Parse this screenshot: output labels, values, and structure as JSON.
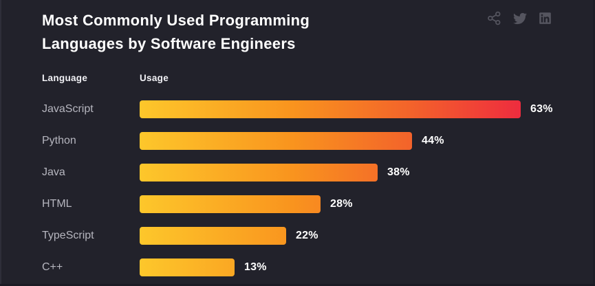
{
  "panel": {
    "title_line1": "Most Commonly Used Programming",
    "title_line2": "Languages by Software Engineers",
    "column_headers": {
      "language": "Language",
      "usage": "Usage"
    },
    "social_icons": [
      "share",
      "twitter",
      "linkedin"
    ],
    "colors": {
      "background": "#22222b",
      "icon": "#55555f",
      "bar_gradient": [
        "#fdc72b",
        "#f9941e",
        "#f3652a",
        "#ee2c3e"
      ]
    }
  },
  "chart_data": {
    "type": "bar",
    "orientation": "horizontal",
    "title": "Most Commonly Used Programming Languages by Software Engineers",
    "categories": [
      "JavaScript",
      "Python",
      "Java",
      "HTML",
      "TypeScript",
      "C++"
    ],
    "values": [
      63,
      44,
      38,
      28,
      22,
      13
    ],
    "value_suffix": "%",
    "xlabel": "Usage",
    "ylabel": "Language",
    "xlim": [
      0,
      63
    ],
    "grid": false,
    "legend": false,
    "value_labels": "end-of-bar"
  }
}
